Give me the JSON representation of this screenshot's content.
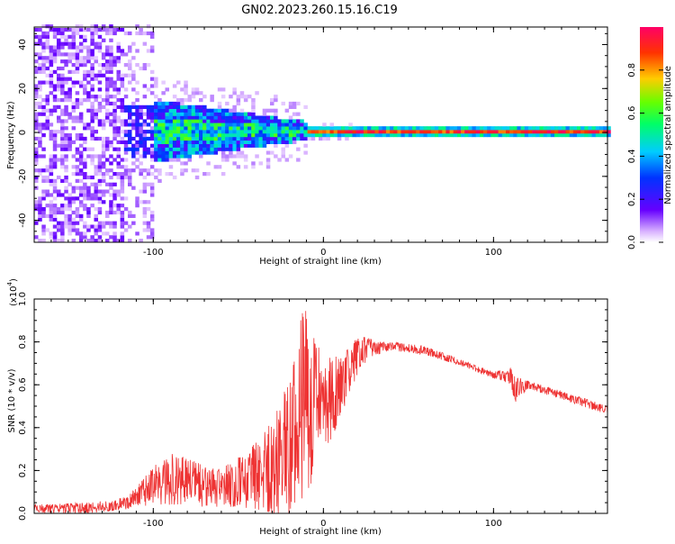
{
  "title": "GN02.2023.260.15.16.C19",
  "chart_data": [
    {
      "type": "heatmap",
      "xlabel": "Height of straight line (km)",
      "ylabel": "Frequency (Hz)",
      "xlim": [
        -170,
        167
      ],
      "ylim": [
        -50,
        48
      ],
      "x_ticks": [
        -100,
        0,
        100
      ],
      "y_ticks": [
        -40,
        -20,
        0,
        20,
        40
      ],
      "colorbar": {
        "label": "Normalized spectral amplitude",
        "range": [
          0.0,
          1.0
        ],
        "ticks": [
          "0.0",
          "0.2",
          "0.4",
          "0.6",
          "0.8"
        ],
        "colors": [
          "#ffffff",
          "#d9b3ff",
          "#6600ff",
          "#0033ff",
          "#00ccff",
          "#00ff66",
          "#66ff00",
          "#ffcc00",
          "#ff3300",
          "#ff0066"
        ]
      }
    },
    {
      "type": "line",
      "xlabel": "Height of straight line (km)",
      "ylabel": "SNR (10 * v/v)",
      "y_multiplier": "(x10",
      "y_multiplier_exp": "4",
      "xlim": [
        -170,
        167
      ],
      "ylim": [
        0,
        1.0
      ],
      "x_ticks": [
        -100,
        0,
        100
      ],
      "y_ticks": [
        "0.0",
        "0.2",
        "0.4",
        "0.6",
        "0.8",
        "1.0"
      ],
      "color": "#ee3333",
      "envelope": {
        "x": [
          -170,
          -140,
          -125,
          -115,
          -110,
          -100,
          -90,
          -80,
          -70,
          -60,
          -50,
          -40,
          -30,
          -25,
          -20,
          -15,
          -12,
          -10,
          -8,
          -5,
          0,
          5,
          10,
          15,
          20,
          25,
          30,
          35,
          40,
          50,
          60,
          80,
          100,
          110,
          112,
          120,
          140,
          160,
          167
        ],
        "low": [
          0.0,
          0.0,
          0.01,
          0.02,
          0.03,
          0.04,
          0.04,
          0.04,
          0.03,
          0.03,
          0.03,
          0.02,
          0.0,
          0.0,
          0.0,
          0.0,
          0.0,
          0.02,
          0.1,
          0.25,
          0.3,
          0.35,
          0.45,
          0.55,
          0.65,
          0.7,
          0.73,
          0.75,
          0.76,
          0.75,
          0.74,
          0.69,
          0.63,
          0.6,
          0.5,
          0.58,
          0.53,
          0.48,
          0.46
        ],
        "high": [
          0.04,
          0.05,
          0.06,
          0.08,
          0.12,
          0.22,
          0.28,
          0.26,
          0.22,
          0.21,
          0.26,
          0.33,
          0.45,
          0.55,
          0.6,
          0.8,
          1.0,
          0.95,
          0.7,
          0.85,
          0.7,
          0.75,
          0.72,
          0.78,
          0.82,
          0.83,
          0.8,
          0.8,
          0.8,
          0.79,
          0.78,
          0.72,
          0.66,
          0.68,
          0.66,
          0.62,
          0.57,
          0.52,
          0.5
        ]
      }
    }
  ]
}
